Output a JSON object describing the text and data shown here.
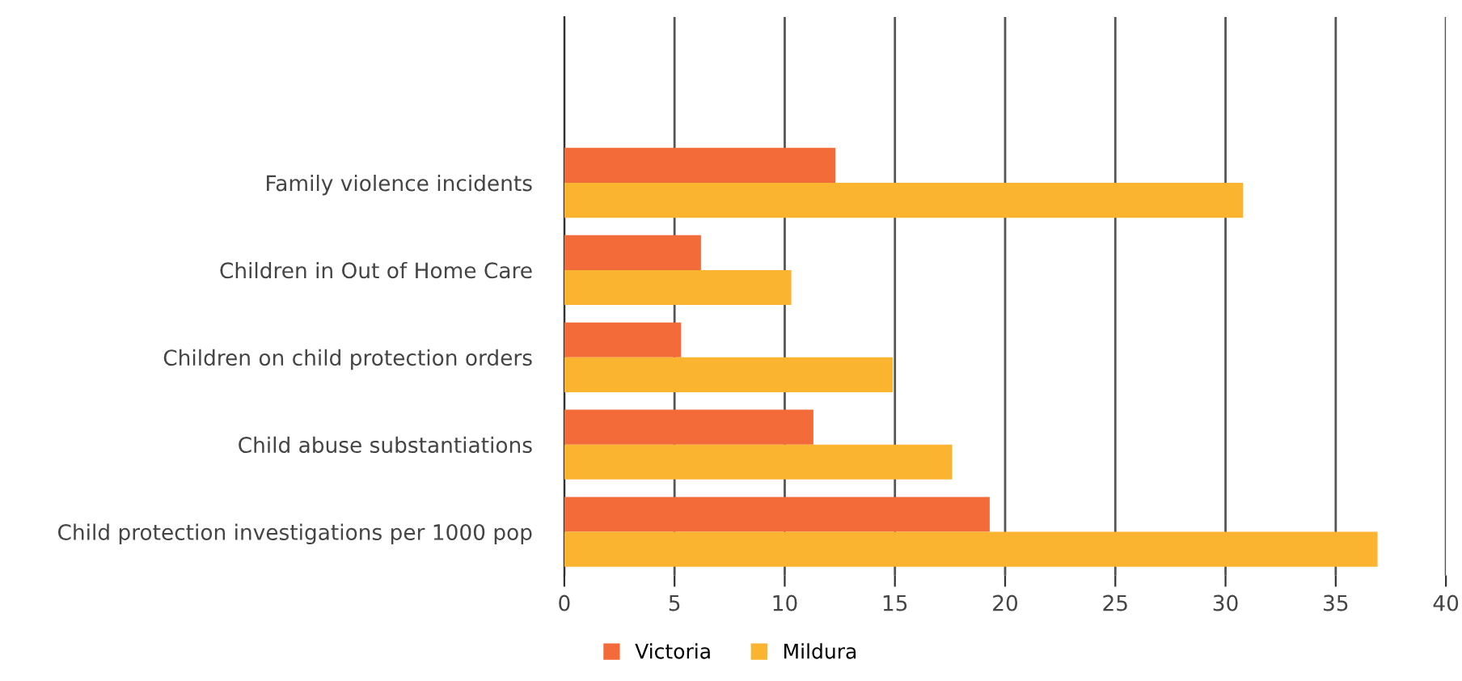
{
  "chart_data": {
    "type": "bar",
    "orientation": "horizontal",
    "categories": [
      "Family violence incidents",
      "Children in Out of Home Care",
      "Children on child protection orders",
      "Child abuse substantiations",
      "Child protection investigations per 1000 pop"
    ],
    "series": [
      {
        "name": "Victoria",
        "color": "#f26b38",
        "values": [
          12.3,
          6.2,
          5.3,
          11.3,
          19.3
        ]
      },
      {
        "name": "Mildura",
        "color": "#fbb430",
        "values": [
          30.8,
          10.3,
          14.9,
          17.6,
          36.9
        ]
      }
    ],
    "xlim": [
      0,
      40
    ],
    "xticks": [
      0,
      5,
      10,
      15,
      20,
      25,
      30,
      35,
      40
    ],
    "grid": "x",
    "legend": "bottom"
  }
}
